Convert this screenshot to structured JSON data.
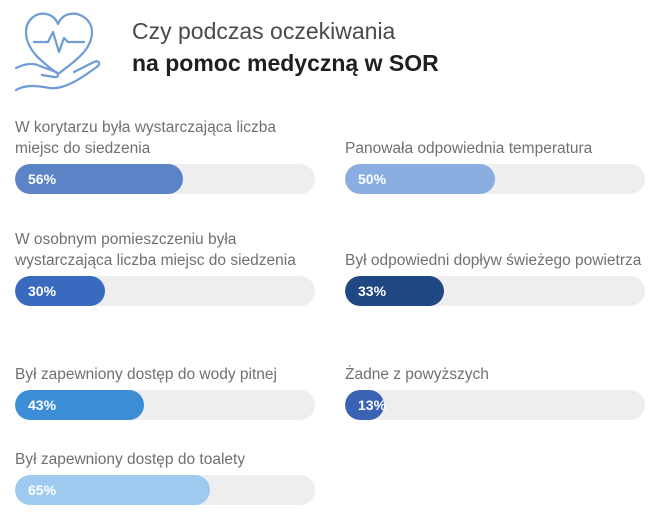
{
  "header": {
    "title_line1": "Czy podczas oczekiwania",
    "title_line2": "na pomoc medyczną w SOR",
    "logo_icon": "heart-hand-icon"
  },
  "chart_data": {
    "type": "bar",
    "orientation": "horizontal",
    "ylim": [
      0,
      100
    ],
    "categories": [
      "W korytarzu była wystarczająca liczba miejsc do siedzenia",
      "Panowała odpowiednia temperatura",
      "W osobnym pomieszczeniu była wystarczająca liczba miejsc do siedzenia",
      "Był odpowiedni dopływ świeżego powietrza",
      "Był zapewniony dostęp do wody pitnej",
      "Żadne z powyższych",
      "Był zapewniony dostęp do toalety"
    ],
    "values": [
      56,
      50,
      30,
      33,
      43,
      13,
      65
    ],
    "value_labels": [
      "56%",
      "50%",
      "30%",
      "33%",
      "43%",
      "13%",
      "65%"
    ],
    "colors": [
      "#5b83c6",
      "#8aaee0",
      "#3a6ac0",
      "#1f4782",
      "#3b8ed6",
      "#3a63b5",
      "#9fcaf0"
    ],
    "track_color": "#eeeeee"
  }
}
